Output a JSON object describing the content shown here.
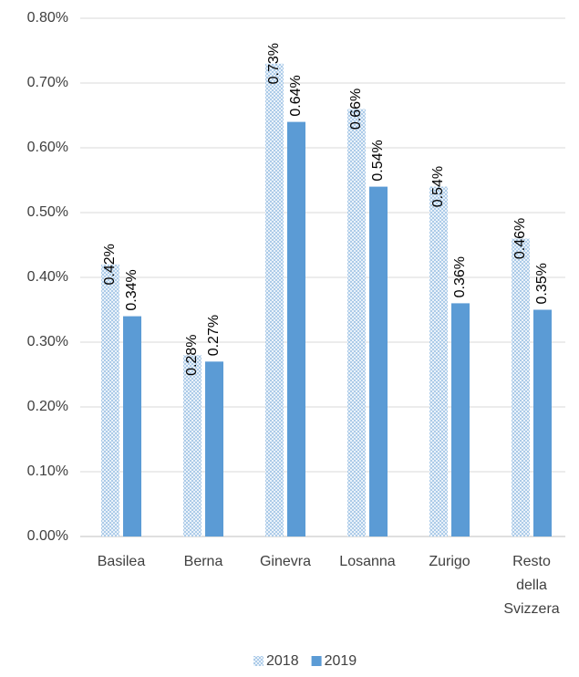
{
  "chart_data": {
    "type": "bar",
    "categories": [
      "Basilea",
      "Berna",
      "Ginevra",
      "Losanna",
      "Zurigo",
      "Resto della Svizzera"
    ],
    "series": [
      {
        "name": "2018",
        "color": "#9dc3e6",
        "pattern": "dotted",
        "values": [
          0.42,
          0.28,
          0.73,
          0.66,
          0.54,
          0.46
        ],
        "value_labels": [
          "0.42%",
          "0.28%",
          "0.73%",
          "0.66%",
          "0.54%",
          "0.46%"
        ]
      },
      {
        "name": "2019",
        "color": "#5b9bd5",
        "values": [
          0.34,
          0.27,
          0.64,
          0.54,
          0.36,
          0.35
        ],
        "value_labels": [
          "0.34%",
          "0.27%",
          "0.64%",
          "0.54%",
          "0.36%",
          "0.35%"
        ]
      }
    ],
    "ylim": [
      0,
      0.8
    ],
    "yticks": [
      {
        "value": 0,
        "label": "0.00%"
      },
      {
        "value": 0.1,
        "label": "0.10%"
      },
      {
        "value": 0.2,
        "label": "0.20%"
      },
      {
        "value": 0.3,
        "label": "0.30%"
      },
      {
        "value": 0.4,
        "label": "0.40%"
      },
      {
        "value": 0.5,
        "label": "0.50%"
      },
      {
        "value": 0.6,
        "label": "0.60%"
      },
      {
        "value": 0.7,
        "label": "0.70%"
      },
      {
        "value": 0.8,
        "label": "0.80%"
      }
    ],
    "grid": true,
    "legend": "bottom"
  }
}
